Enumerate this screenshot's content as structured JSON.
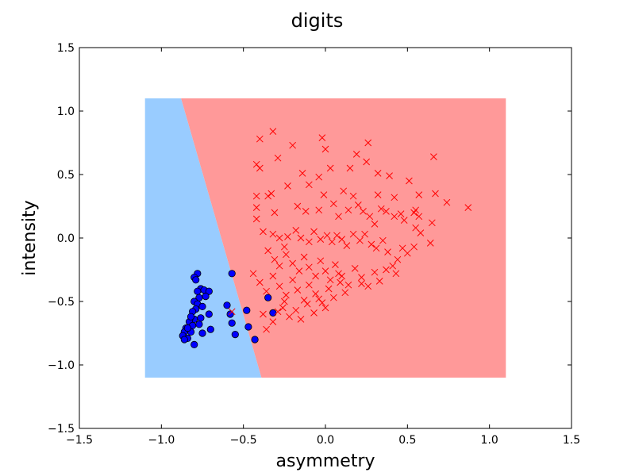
{
  "chart_data": {
    "type": "scatter",
    "title": "digits",
    "xlabel": "asymmetry",
    "ylabel": "intensity",
    "xlim": [
      -1.5,
      1.5
    ],
    "ylim": [
      -1.5,
      1.5
    ],
    "xticks": [
      -1.5,
      -1.0,
      -0.5,
      0.0,
      0.5,
      1.0,
      1.5
    ],
    "xtick_labels": [
      "−1.5",
      "−1.0",
      "−0.5",
      "0.0",
      "0.5",
      "1.0",
      "1.5"
    ],
    "yticks": [
      -1.5,
      -1.0,
      -0.5,
      0.0,
      0.5,
      1.0,
      1.5
    ],
    "ytick_labels": [
      "−1.5",
      "−1.0",
      "−0.5",
      "0.0",
      "0.5",
      "1.0",
      "1.5"
    ],
    "grid": false,
    "decision_regions": {
      "extent": {
        "x": [
          -1.1,
          1.1
        ],
        "y": [
          -1.1,
          1.1
        ]
      },
      "boundary": [
        [
          -0.88,
          1.1
        ],
        [
          -0.39,
          -1.1
        ]
      ],
      "left_region_color": "#99ccff",
      "right_region_color": "#ff9999"
    },
    "series": [
      {
        "marker": "o",
        "color": "#0000ff",
        "points": [
          [
            -0.78,
            -0.28
          ],
          [
            -0.8,
            -0.31
          ],
          [
            -0.79,
            -0.33
          ],
          [
            -0.57,
            -0.28
          ],
          [
            -0.76,
            -0.4
          ],
          [
            -0.78,
            -0.42
          ],
          [
            -0.74,
            -0.41
          ],
          [
            -0.71,
            -0.42
          ],
          [
            -0.73,
            -0.46
          ],
          [
            -0.77,
            -0.47
          ],
          [
            -0.8,
            -0.5
          ],
          [
            -0.78,
            -0.52
          ],
          [
            -0.75,
            -0.54
          ],
          [
            -0.79,
            -0.56
          ],
          [
            -0.81,
            -0.58
          ],
          [
            -0.71,
            -0.6
          ],
          [
            -0.76,
            -0.63
          ],
          [
            -0.8,
            -0.64
          ],
          [
            -0.83,
            -0.66
          ],
          [
            -0.77,
            -0.68
          ],
          [
            -0.81,
            -0.69
          ],
          [
            -0.85,
            -0.71
          ],
          [
            -0.82,
            -0.74
          ],
          [
            -0.86,
            -0.74
          ],
          [
            -0.87,
            -0.77
          ],
          [
            -0.84,
            -0.79
          ],
          [
            -0.86,
            -0.8
          ],
          [
            -0.8,
            -0.84
          ],
          [
            -0.75,
            -0.75
          ],
          [
            -0.7,
            -0.72
          ],
          [
            -0.6,
            -0.53
          ],
          [
            -0.58,
            -0.6
          ],
          [
            -0.55,
            -0.76
          ],
          [
            -0.48,
            -0.57
          ],
          [
            -0.47,
            -0.7
          ],
          [
            -0.43,
            -0.8
          ],
          [
            -0.35,
            -0.47
          ],
          [
            -0.32,
            -0.59
          ],
          [
            -0.57,
            -0.67
          ],
          [
            -0.82,
            -0.62
          ],
          [
            -0.84,
            -0.71
          ]
        ]
      },
      {
        "marker": "x",
        "color": "#ff0000",
        "points": [
          [
            -0.32,
            0.84
          ],
          [
            -0.4,
            0.78
          ],
          [
            -0.2,
            0.73
          ],
          [
            -0.02,
            0.79
          ],
          [
            0.26,
            0.75
          ],
          [
            0.0,
            0.7
          ],
          [
            -0.29,
            0.63
          ],
          [
            0.19,
            0.66
          ],
          [
            -0.42,
            0.58
          ],
          [
            -0.4,
            0.55
          ],
          [
            0.25,
            0.6
          ],
          [
            0.66,
            0.64
          ],
          [
            -0.14,
            0.51
          ],
          [
            -0.04,
            0.48
          ],
          [
            0.03,
            0.55
          ],
          [
            0.15,
            0.55
          ],
          [
            0.32,
            0.51
          ],
          [
            0.39,
            0.49
          ],
          [
            0.51,
            0.45
          ],
          [
            -0.42,
            0.33
          ],
          [
            -0.35,
            0.33
          ],
          [
            -0.33,
            0.35
          ],
          [
            -0.23,
            0.41
          ],
          [
            -0.1,
            0.42
          ],
          [
            -0.01,
            0.34
          ],
          [
            0.11,
            0.37
          ],
          [
            0.17,
            0.33
          ],
          [
            0.32,
            0.34
          ],
          [
            0.42,
            0.32
          ],
          [
            0.57,
            0.34
          ],
          [
            0.67,
            0.35
          ],
          [
            0.74,
            0.28
          ],
          [
            0.87,
            0.24
          ],
          [
            -0.42,
            0.15
          ],
          [
            -0.42,
            0.24
          ],
          [
            -0.31,
            0.2
          ],
          [
            -0.17,
            0.25
          ],
          [
            -0.12,
            0.21
          ],
          [
            -0.04,
            0.22
          ],
          [
            0.05,
            0.27
          ],
          [
            0.08,
            0.17
          ],
          [
            0.14,
            0.22
          ],
          [
            0.2,
            0.26
          ],
          [
            0.23,
            0.21
          ],
          [
            0.27,
            0.17
          ],
          [
            0.3,
            0.11
          ],
          [
            0.34,
            0.23
          ],
          [
            0.37,
            0.21
          ],
          [
            0.42,
            0.17
          ],
          [
            0.46,
            0.19
          ],
          [
            0.48,
            0.14
          ],
          [
            0.54,
            0.2
          ],
          [
            0.55,
            0.22
          ],
          [
            0.57,
            0.17
          ],
          [
            0.65,
            0.12
          ],
          [
            0.55,
            0.08
          ],
          [
            0.58,
            0.04
          ],
          [
            0.64,
            -0.04
          ],
          [
            0.54,
            -0.07
          ],
          [
            0.5,
            -0.12
          ],
          [
            0.47,
            -0.08
          ],
          [
            0.44,
            -0.17
          ],
          [
            0.41,
            -0.22
          ],
          [
            0.43,
            -0.28
          ],
          [
            -0.38,
            0.05
          ],
          [
            -0.32,
            0.03
          ],
          [
            -0.28,
            0.0
          ],
          [
            -0.25,
            -0.07
          ],
          [
            -0.23,
            0.01
          ],
          [
            -0.18,
            0.06
          ],
          [
            -0.15,
            0.0
          ],
          [
            -0.1,
            -0.03
          ],
          [
            -0.07,
            0.05
          ],
          [
            -0.03,
            -0.01
          ],
          [
            0.01,
            0.02
          ],
          [
            0.04,
            -0.03
          ],
          [
            0.07,
            0.02
          ],
          [
            0.1,
            -0.01
          ],
          [
            0.13,
            -0.06
          ],
          [
            0.17,
            0.03
          ],
          [
            0.21,
            -0.02
          ],
          [
            0.24,
            0.03
          ],
          [
            0.28,
            -0.05
          ],
          [
            0.31,
            -0.08
          ],
          [
            0.35,
            -0.02
          ],
          [
            0.38,
            -0.11
          ],
          [
            -0.35,
            -0.1
          ],
          [
            -0.31,
            -0.17
          ],
          [
            -0.28,
            -0.22
          ],
          [
            -0.24,
            -0.13
          ],
          [
            -0.2,
            -0.2
          ],
          [
            -0.16,
            -0.26
          ],
          [
            -0.13,
            -0.15
          ],
          [
            -0.1,
            -0.23
          ],
          [
            -0.06,
            -0.3
          ],
          [
            -0.03,
            -0.18
          ],
          [
            0.0,
            -0.26
          ],
          [
            0.03,
            -0.33
          ],
          [
            0.06,
            -0.21
          ],
          [
            0.1,
            -0.3
          ],
          [
            0.14,
            -0.37
          ],
          [
            0.18,
            -0.24
          ],
          [
            0.22,
            -0.31
          ],
          [
            0.26,
            -0.38
          ],
          [
            0.3,
            -0.27
          ],
          [
            0.33,
            -0.34
          ],
          [
            0.37,
            -0.25
          ],
          [
            -0.44,
            -0.28
          ],
          [
            -0.4,
            -0.35
          ],
          [
            -0.36,
            -0.42
          ],
          [
            -0.32,
            -0.3
          ],
          [
            -0.28,
            -0.38
          ],
          [
            -0.24,
            -0.45
          ],
          [
            -0.2,
            -0.33
          ],
          [
            -0.17,
            -0.41
          ],
          [
            -0.13,
            -0.49
          ],
          [
            -0.1,
            -0.37
          ],
          [
            -0.06,
            -0.44
          ],
          [
            -0.02,
            -0.51
          ],
          [
            0.02,
            -0.4
          ],
          [
            0.05,
            -0.47
          ],
          [
            0.09,
            -0.35
          ],
          [
            0.12,
            -0.43
          ],
          [
            -0.38,
            -0.6
          ],
          [
            -0.32,
            -0.66
          ],
          [
            -0.26,
            -0.55
          ],
          [
            -0.22,
            -0.62
          ],
          [
            -0.18,
            -0.57
          ],
          [
            -0.15,
            -0.64
          ],
          [
            -0.11,
            -0.52
          ],
          [
            -0.07,
            -0.59
          ],
          [
            -0.04,
            -0.48
          ],
          [
            0.0,
            -0.55
          ],
          [
            -0.36,
            -0.72
          ],
          [
            -0.29,
            -0.58
          ],
          [
            -0.25,
            -0.5
          ],
          [
            0.22,
            -0.36
          ],
          [
            0.08,
            -0.28
          ],
          [
            -0.57,
            -0.58
          ]
        ]
      }
    ]
  }
}
